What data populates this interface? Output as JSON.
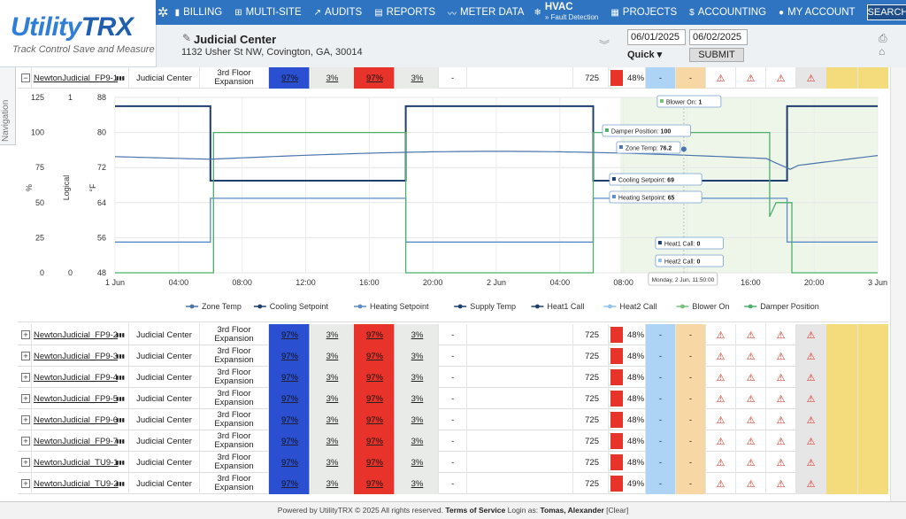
{
  "app": {
    "logo_main": "Utility",
    "logo_bold": "TRX",
    "tagline": "Track Control Save and Measure"
  },
  "nav": {
    "items": [
      {
        "icon": "bar-chart-icon",
        "label": "BILLING"
      },
      {
        "icon": "sitemap-icon",
        "label": "MULTI-SITE"
      },
      {
        "icon": "trend-icon",
        "label": "AUDITS"
      },
      {
        "icon": "document-icon",
        "label": "REPORTS"
      },
      {
        "icon": "line-chart-icon",
        "label": "METER DATA"
      },
      {
        "icon": "snowflake-icon",
        "label": "HVAC",
        "sub": "» Fault Detection"
      },
      {
        "icon": "grid-icon",
        "label": "PROJECTS"
      },
      {
        "icon": "dollar-icon",
        "label": "ACCOUNTING"
      },
      {
        "icon": "user-icon",
        "label": "MY ACCOUNT"
      }
    ],
    "search": "SEARCH"
  },
  "site": {
    "name": "Judicial Center",
    "address": "1132 Usher St NW, Covington, GA, 30014"
  },
  "dates": {
    "start": "06/01/2025",
    "end": "06/02/2025",
    "quick": "Quick ▾",
    "submit": "SUBMIT"
  },
  "sidebar": {
    "label": "Navigation"
  },
  "rows": [
    {
      "exp": "−",
      "unit": "NewtonJudicial_FP9-1",
      "loc": "Judicial Center",
      "floor": "3rd Floor Expansion",
      "p1": "97%",
      "p2": "3%",
      "p3": "97%",
      "p4": "3%",
      "dash": "-",
      "kw": "725",
      "pct": "48%"
    },
    {
      "exp": "+",
      "unit": "NewtonJudicial_FP9-2",
      "loc": "Judicial Center",
      "floor": "3rd Floor Expansion",
      "p1": "97%",
      "p2": "3%",
      "p3": "97%",
      "p4": "3%",
      "dash": "-",
      "kw": "725",
      "pct": "48%"
    },
    {
      "exp": "+",
      "unit": "NewtonJudicial_FP9-3",
      "loc": "Judicial Center",
      "floor": "3rd Floor Expansion",
      "p1": "97%",
      "p2": "3%",
      "p3": "97%",
      "p4": "3%",
      "dash": "-",
      "kw": "725",
      "pct": "48%"
    },
    {
      "exp": "+",
      "unit": "NewtonJudicial_FP9-4",
      "loc": "Judicial Center",
      "floor": "3rd Floor Expansion",
      "p1": "97%",
      "p2": "3%",
      "p3": "97%",
      "p4": "3%",
      "dash": "-",
      "kw": "725",
      "pct": "48%"
    },
    {
      "exp": "+",
      "unit": "NewtonJudicial_FP9-5",
      "loc": "Judicial Center",
      "floor": "3rd Floor Expansion",
      "p1": "97%",
      "p2": "3%",
      "p3": "97%",
      "p4": "3%",
      "dash": "-",
      "kw": "725",
      "pct": "48%"
    },
    {
      "exp": "+",
      "unit": "NewtonJudicial_FP9-6",
      "loc": "Judicial Center",
      "floor": "3rd Floor Expansion",
      "p1": "97%",
      "p2": "3%",
      "p3": "97%",
      "p4": "3%",
      "dash": "-",
      "kw": "725",
      "pct": "48%"
    },
    {
      "exp": "+",
      "unit": "NewtonJudicial_FP9-7",
      "loc": "Judicial Center",
      "floor": "3rd Floor Expansion",
      "p1": "97%",
      "p2": "3%",
      "p3": "97%",
      "p4": "3%",
      "dash": "-",
      "kw": "725",
      "pct": "48%"
    },
    {
      "exp": "+",
      "unit": "NewtonJudicial_TU9-1",
      "loc": "Judicial Center",
      "floor": "3rd Floor Expansion",
      "p1": "97%",
      "p2": "3%",
      "p3": "97%",
      "p4": "3%",
      "dash": "-",
      "kw": "725",
      "pct": "48%"
    },
    {
      "exp": "+",
      "unit": "NewtonJudicial_TU9-2",
      "loc": "Judicial Center",
      "floor": "3rd Floor Expansion",
      "p1": "97%",
      "p2": "3%",
      "p3": "97%",
      "p4": "3%",
      "dash": "-",
      "kw": "725",
      "pct": "49%"
    }
  ],
  "footer": {
    "powered": "Powered by UtilityTRX © 2025 All rights reserved.",
    "terms": "Terms of Service",
    "login": "Login as:",
    "user": "Tomas, Alexander",
    "clear": "[Clear]"
  },
  "chart_data": {
    "type": "line",
    "x_ticks": [
      "1 Jun",
      "04:00",
      "08:00",
      "12:00",
      "16:00",
      "20:00",
      "2 Jun",
      "04:00",
      "08:00",
      "12:00",
      "16:00",
      "20:00",
      "3 Jun"
    ],
    "axes": [
      {
        "label": "%",
        "ticks": [
          "125",
          "100",
          "75",
          "50",
          "25",
          "0"
        ]
      },
      {
        "label": "Logical",
        "ticks": [
          "1",
          "0"
        ]
      },
      {
        "label": "°F",
        "ticks": [
          "88",
          "80",
          "72",
          "64",
          "56",
          "48"
        ]
      }
    ],
    "y_range_F": [
      48,
      88
    ],
    "series": [
      {
        "name": "Zone Temp",
        "color": "#4a74ad"
      },
      {
        "name": "Cooling Setpoint",
        "color": "#1e3f6e"
      },
      {
        "name": "Heating Setpoint",
        "color": "#5b8bc9"
      },
      {
        "name": "Supply Temp",
        "color": "#1e3f6e"
      },
      {
        "name": "Heat1 Call",
        "color": "#1e3f6e"
      },
      {
        "name": "Heat2 Call",
        "color": "#8ec3ea"
      },
      {
        "name": "Blower On",
        "color": "#78c27a"
      },
      {
        "name": "Damper Position",
        "color": "#4caf6a"
      }
    ],
    "tooltips": [
      {
        "label": "Blower On:",
        "value": "1"
      },
      {
        "label": "Damper Position:",
        "value": "100"
      },
      {
        "label": "Zone Temp:",
        "value": "76.2"
      },
      {
        "label": "Cooling Setpoint:",
        "value": "69"
      },
      {
        "label": "Heating Setpoint:",
        "value": "65"
      },
      {
        "label": "Heat1 Call:",
        "value": "0"
      },
      {
        "label": "Heat2 Call:",
        "value": "0"
      }
    ],
    "hover_time": "Monday, 2 Jun, 11:50:00"
  }
}
